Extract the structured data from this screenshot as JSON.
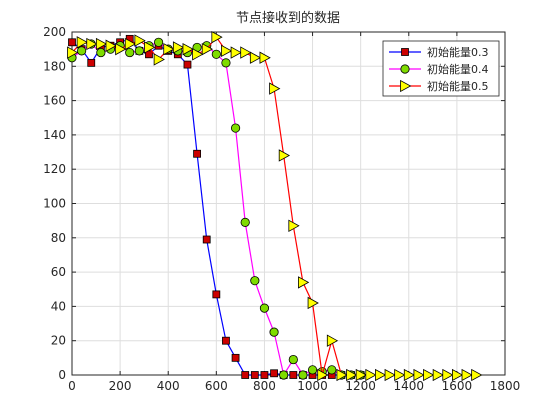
{
  "chart_data": {
    "type": "line",
    "title": "节点接收到的数据",
    "xlabel": "",
    "ylabel": "",
    "xlim": [
      0,
      1800
    ],
    "ylim": [
      0,
      200
    ],
    "xticks": [
      0,
      200,
      400,
      600,
      800,
      1000,
      1200,
      1400,
      1600,
      1800
    ],
    "yticks": [
      0,
      20,
      40,
      60,
      80,
      100,
      120,
      140,
      160,
      180,
      200
    ],
    "grid": true,
    "legend_position": "top-right",
    "series": [
      {
        "name": "初始能量0.3",
        "line_color": "#0000ff",
        "marker": "square",
        "marker_fill": "#cc0000",
        "points": [
          [
            0,
            194
          ],
          [
            40,
            190
          ],
          [
            80,
            182
          ],
          [
            120,
            191
          ],
          [
            160,
            192
          ],
          [
            200,
            194
          ],
          [
            240,
            196
          ],
          [
            280,
            189
          ],
          [
            320,
            187
          ],
          [
            360,
            192
          ],
          [
            400,
            189
          ],
          [
            440,
            187
          ],
          [
            480,
            181
          ],
          [
            520,
            129
          ],
          [
            560,
            79
          ],
          [
            600,
            47
          ],
          [
            640,
            20
          ],
          [
            680,
            10
          ],
          [
            720,
            0
          ],
          [
            760,
            0
          ],
          [
            800,
            0
          ],
          [
            840,
            1
          ],
          [
            880,
            0
          ],
          [
            920,
            0
          ],
          [
            960,
            0
          ],
          [
            1000,
            0
          ],
          [
            1040,
            0
          ],
          [
            1080,
            0
          ],
          [
            1120,
            0
          ],
          [
            1160,
            0
          ],
          [
            1200,
            0
          ]
        ]
      },
      {
        "name": "初始能量0.4",
        "line_color": "#ff00ff",
        "marker": "circle",
        "marker_fill": "#7fdc00",
        "points": [
          [
            0,
            185
          ],
          [
            40,
            189
          ],
          [
            80,
            193
          ],
          [
            120,
            188
          ],
          [
            160,
            190
          ],
          [
            200,
            192
          ],
          [
            240,
            188
          ],
          [
            280,
            189
          ],
          [
            320,
            192
          ],
          [
            360,
            194
          ],
          [
            400,
            190
          ],
          [
            440,
            189
          ],
          [
            480,
            188
          ],
          [
            520,
            191
          ],
          [
            560,
            192
          ],
          [
            600,
            187
          ],
          [
            640,
            182
          ],
          [
            680,
            144
          ],
          [
            720,
            89
          ],
          [
            760,
            55
          ],
          [
            800,
            39
          ],
          [
            840,
            25
          ],
          [
            880,
            0
          ],
          [
            920,
            9
          ],
          [
            960,
            0
          ],
          [
            1000,
            3
          ],
          [
            1040,
            2
          ],
          [
            1080,
            3
          ],
          [
            1120,
            0
          ],
          [
            1160,
            0
          ],
          [
            1200,
            0
          ]
        ]
      },
      {
        "name": "初始能量0.5",
        "line_color": "#ff0000",
        "marker": "triangle-right",
        "marker_fill": "#ffff00",
        "points": [
          [
            0,
            188
          ],
          [
            40,
            194
          ],
          [
            80,
            193
          ],
          [
            120,
            193
          ],
          [
            160,
            192
          ],
          [
            200,
            190
          ],
          [
            240,
            193
          ],
          [
            280,
            195
          ],
          [
            320,
            191
          ],
          [
            360,
            184
          ],
          [
            400,
            190
          ],
          [
            440,
            191
          ],
          [
            480,
            190
          ],
          [
            520,
            187
          ],
          [
            560,
            190
          ],
          [
            600,
            197
          ],
          [
            640,
            189
          ],
          [
            680,
            188
          ],
          [
            720,
            188
          ],
          [
            760,
            185
          ],
          [
            800,
            185
          ],
          [
            840,
            167
          ],
          [
            880,
            128
          ],
          [
            920,
            87
          ],
          [
            960,
            54
          ],
          [
            1000,
            42
          ],
          [
            1040,
            0
          ],
          [
            1080,
            20
          ],
          [
            1120,
            0
          ],
          [
            1160,
            0
          ],
          [
            1200,
            0
          ],
          [
            1240,
            0
          ],
          [
            1280,
            0
          ],
          [
            1320,
            0
          ],
          [
            1360,
            0
          ],
          [
            1400,
            0
          ],
          [
            1440,
            0
          ],
          [
            1480,
            0
          ],
          [
            1520,
            0
          ],
          [
            1560,
            0
          ],
          [
            1600,
            0
          ],
          [
            1640,
            0
          ],
          [
            1680,
            0
          ]
        ]
      }
    ]
  }
}
